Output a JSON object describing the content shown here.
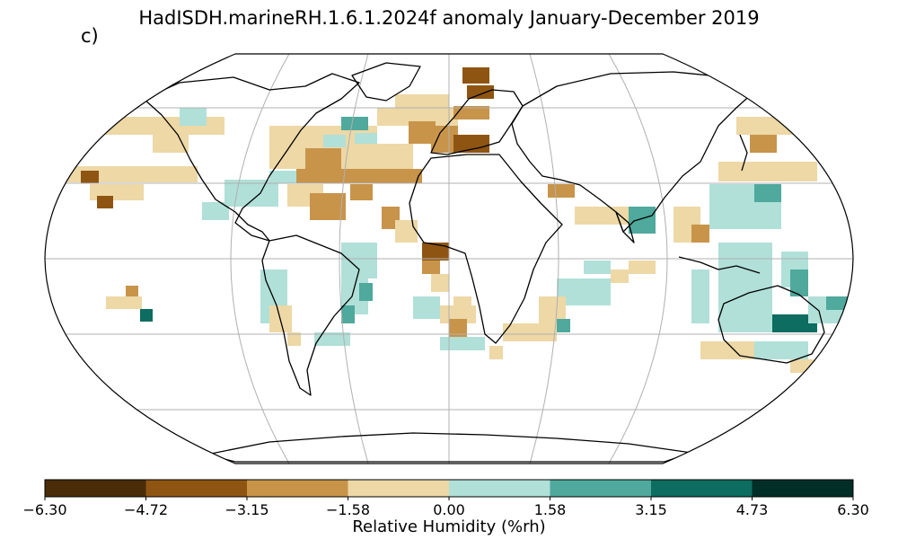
{
  "title": "HadISDH.marineRH.1.6.1.2024f anomaly January-December 2019",
  "panel_label": "c)",
  "projection": "Robinson",
  "colorbar": {
    "label": "Relative Humidity (%rh)",
    "ticks": [
      "−6.30",
      "−4.72",
      "−3.15",
      "−1.58",
      "0.00",
      "1.58",
      "3.15",
      "4.73",
      "6.30"
    ],
    "colors": [
      "#4a2c08",
      "#8e5512",
      "#c8944a",
      "#edd8a6",
      "#b0e0d8",
      "#4fa99c",
      "#0c6d60",
      "#012f28"
    ]
  },
  "grid_colors": {
    "land": "#000000",
    "gridline": "#b0b0b0",
    "border": "#000000"
  }
}
